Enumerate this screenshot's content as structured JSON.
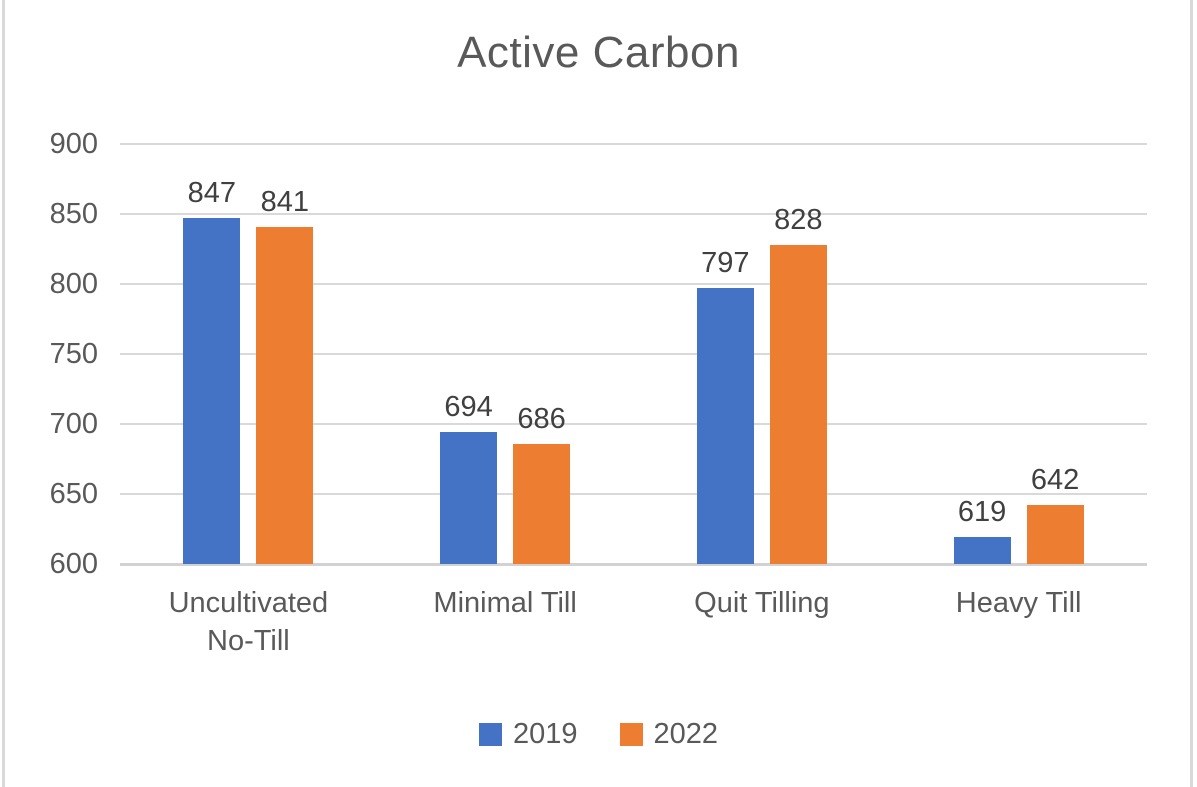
{
  "chart_data": {
    "type": "bar",
    "title": "Active Carbon",
    "categories": [
      "Uncultivated No-Till",
      "Minimal Till",
      "Quit Tilling",
      "Heavy Till"
    ],
    "series": [
      {
        "name": "2019",
        "color": "#4472C4",
        "values": [
          847,
          694,
          797,
          619
        ]
      },
      {
        "name": "2022",
        "color": "#ED7D31",
        "values": [
          841,
          686,
          828,
          642
        ]
      }
    ],
    "ylim": [
      600,
      900
    ],
    "ytick_step": 50,
    "yticks": [
      900,
      850,
      800,
      750,
      700,
      650,
      600
    ],
    "grid": true,
    "data_labels": true,
    "legend_position": "bottom",
    "colors": {
      "title_text": "#595959",
      "axis_text": "#595959",
      "data_label_text": "#404040",
      "gridline": "#D9D9D9",
      "background": "#FFFFFF",
      "frame_border": "#D9D9D9"
    }
  }
}
